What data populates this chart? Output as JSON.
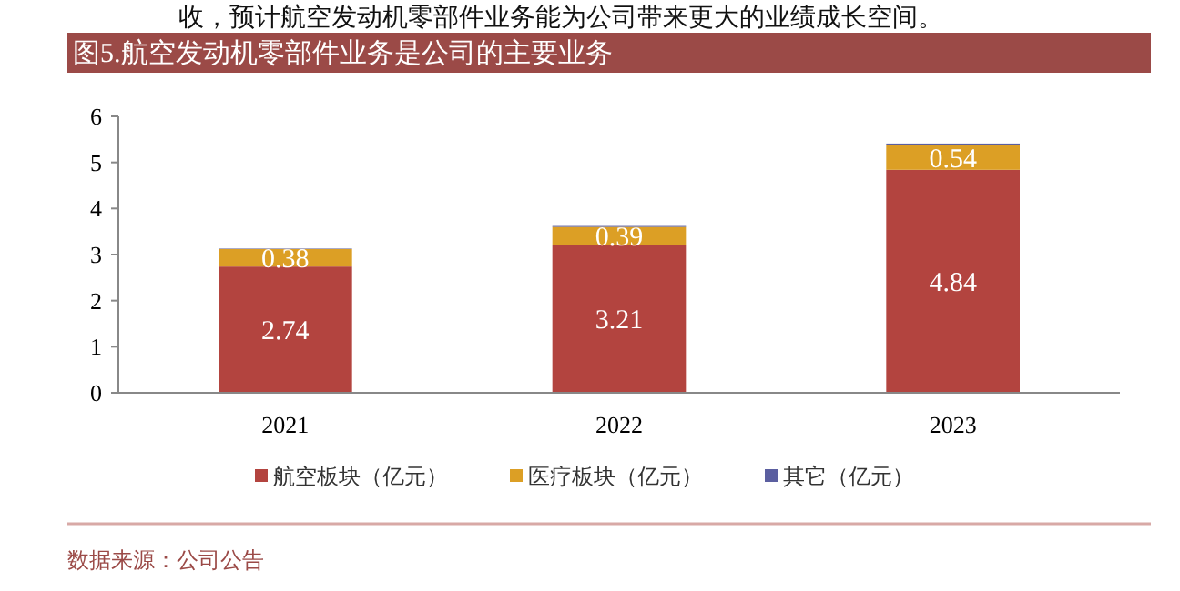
{
  "chart_data": {
    "type": "bar",
    "title": "图5.航空发动机零部件业务是公司的主要业务",
    "annotations": [
      "收，预计航空发动机零部件业务能为公司带来更大的业绩成长空间。",
      "数据来源：公司公告"
    ],
    "categories": [
      "2021",
      "2022",
      "2023"
    ],
    "stacked": true,
    "series": [
      {
        "name": "航空板块（亿元）",
        "color": "#b3443f",
        "values": [
          2.74,
          3.21,
          4.84
        ],
        "value_labels": [
          "2.74",
          "3.21",
          "4.84"
        ]
      },
      {
        "name": "医疗板块（亿元）",
        "color": "#dc9f25",
        "values": [
          0.38,
          0.39,
          0.54
        ],
        "value_labels": [
          "0.38",
          "0.39",
          "0.54"
        ]
      },
      {
        "name": "其它（亿元）",
        "color": "#5b5fa0",
        "values": [
          0.01,
          0.02,
          0.03
        ]
      }
    ],
    "ylim": [
      0,
      6
    ],
    "yticks": [
      0,
      1,
      2,
      3,
      4,
      5,
      6
    ],
    "grid": false,
    "legend": "bottom"
  }
}
